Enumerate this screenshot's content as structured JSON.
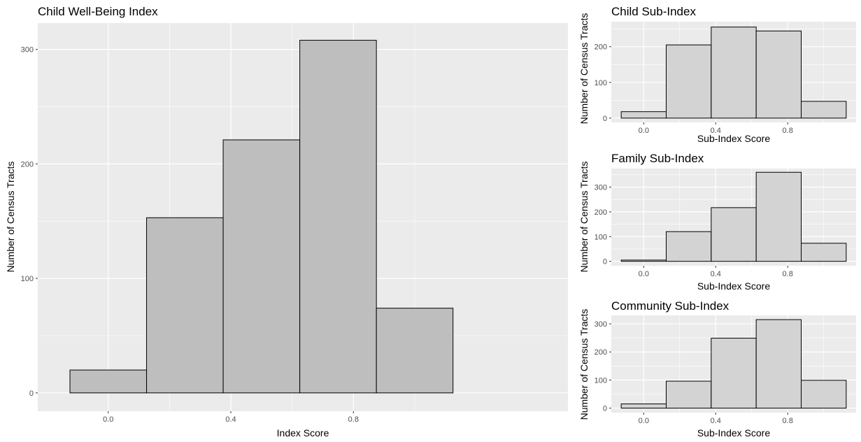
{
  "chart_data": [
    {
      "type": "bar",
      "title": "Child Well-Being Index",
      "xlabel": "Index Score",
      "ylabel": "Number of Census Tracts",
      "bins": [
        [
          -0.125,
          0.125
        ],
        [
          0.125,
          0.375
        ],
        [
          0.375,
          0.625
        ],
        [
          0.625,
          0.875
        ],
        [
          0.875,
          1.125
        ]
      ],
      "values": [
        20,
        153,
        221,
        308,
        74
      ],
      "xlim": [
        -0.23,
        1.5
      ],
      "ylim": [
        -16,
        323
      ],
      "x_ticks": [
        0.0,
        0.4,
        0.8
      ],
      "x_tick_labels": [
        "0.0",
        "0.4",
        "0.8"
      ],
      "y_ticks": [
        0,
        100,
        200,
        300
      ],
      "y_tick_labels": [
        "0",
        "100",
        "200",
        "300"
      ],
      "grid": true,
      "bar_fill": "#bebebe",
      "bar_stroke": "#000000",
      "panel_bg": "#ebebeb"
    },
    {
      "type": "bar",
      "title": "Child Sub-Index",
      "xlabel": "Sub-Index Score",
      "ylabel": "Number of Census Tracts",
      "bins": [
        [
          -0.125,
          0.125
        ],
        [
          0.125,
          0.375
        ],
        [
          0.375,
          0.625
        ],
        [
          0.625,
          0.875
        ],
        [
          0.875,
          1.125
        ]
      ],
      "values": [
        18,
        205,
        255,
        244,
        47
      ],
      "xlim": [
        -0.18,
        1.18
      ],
      "ylim": [
        -12,
        270
      ],
      "x_ticks": [
        0.0,
        0.4,
        0.8
      ],
      "x_tick_labels": [
        "0.0",
        "0.4",
        "0.8"
      ],
      "y_ticks": [
        0,
        100,
        200
      ],
      "y_tick_labels": [
        "0",
        "100",
        "200"
      ],
      "grid": true,
      "bar_fill": "#d3d3d3",
      "bar_stroke": "#000000",
      "panel_bg": "#ebebeb"
    },
    {
      "type": "bar",
      "title": "Family Sub-Index",
      "xlabel": "Sub-Index Score",
      "ylabel": "Number of Census Tracts",
      "bins": [
        [
          -0.125,
          0.125
        ],
        [
          0.125,
          0.375
        ],
        [
          0.375,
          0.625
        ],
        [
          0.625,
          0.875
        ],
        [
          0.875,
          1.125
        ]
      ],
      "values": [
        5,
        120,
        217,
        360,
        73
      ],
      "xlim": [
        -0.18,
        1.18
      ],
      "ylim": [
        -18,
        375
      ],
      "x_ticks": [
        0.0,
        0.4,
        0.8
      ],
      "x_tick_labels": [
        "0.0",
        "0.4",
        "0.8"
      ],
      "y_ticks": [
        0,
        100,
        200,
        300
      ],
      "y_tick_labels": [
        "0",
        "100",
        "200",
        "300"
      ],
      "grid": true,
      "bar_fill": "#d3d3d3",
      "bar_stroke": "#000000",
      "panel_bg": "#ebebeb"
    },
    {
      "type": "bar",
      "title": "Community Sub-Index",
      "xlabel": "Sub-Index Score",
      "ylabel": "Number of Census Tracts",
      "bins": [
        [
          -0.125,
          0.125
        ],
        [
          0.125,
          0.375
        ],
        [
          0.375,
          0.625
        ],
        [
          0.625,
          0.875
        ],
        [
          0.875,
          1.125
        ]
      ],
      "values": [
        15,
        96,
        249,
        315,
        99
      ],
      "xlim": [
        -0.18,
        1.18
      ],
      "ylim": [
        -16,
        330
      ],
      "x_ticks": [
        0.0,
        0.4,
        0.8
      ],
      "x_tick_labels": [
        "0.0",
        "0.4",
        "0.8"
      ],
      "y_ticks": [
        0,
        100,
        200,
        300
      ],
      "y_tick_labels": [
        "0",
        "100",
        "200",
        "300"
      ],
      "grid": true,
      "bar_fill": "#d3d3d3",
      "bar_stroke": "#000000",
      "panel_bg": "#ebebeb"
    }
  ]
}
